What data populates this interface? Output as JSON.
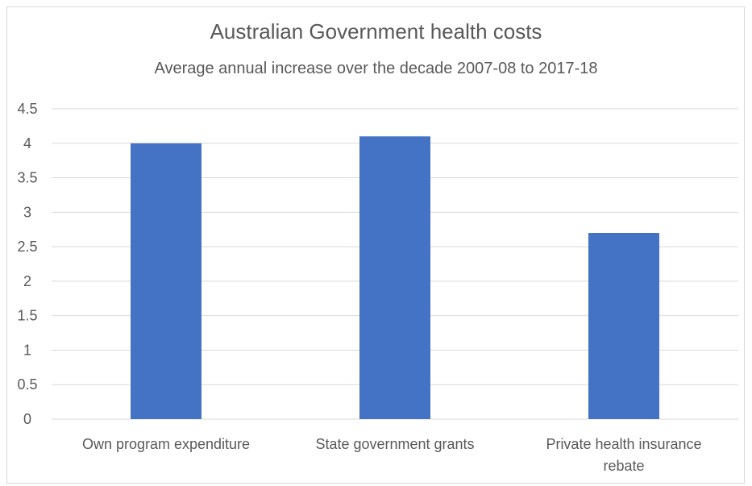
{
  "chart_data": {
    "type": "bar",
    "title": "Australian Government health costs",
    "subtitle": "Average annual increase over the decade 2007-08 to 2017-18",
    "categories": [
      "Own program expenditure",
      "State government grants",
      "Private health insurance rebate"
    ],
    "category_lines": [
      [
        "Own program expenditure"
      ],
      [
        "State government grants"
      ],
      [
        "Private health insurance",
        "rebate"
      ]
    ],
    "values": [
      4.0,
      4.1,
      2.7
    ],
    "yticks": [
      "0",
      "0.5",
      "1",
      "1.5",
      "2",
      "2.5",
      "3",
      "3.5",
      "4",
      "4.5"
    ],
    "ylim": [
      0,
      4.5
    ],
    "xlabel": "",
    "ylabel": "",
    "grid": true,
    "legend": "none",
    "bar_color": "#4472C4",
    "grid_color": "#d9d9d9",
    "text_color": "#595959"
  }
}
